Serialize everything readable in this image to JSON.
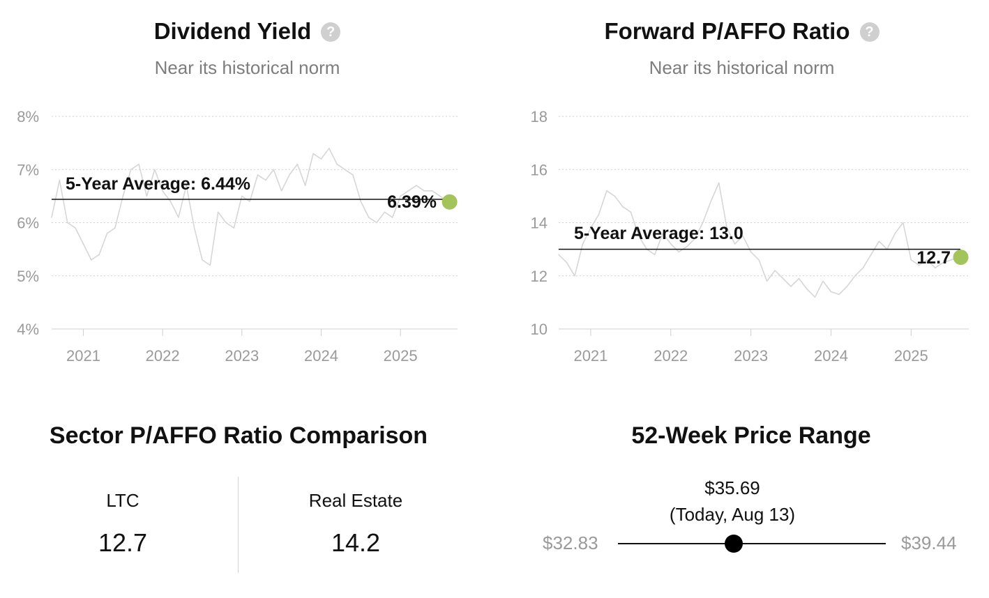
{
  "dividend": {
    "title": "Dividend Yield",
    "subtitle": "Near its historical norm",
    "help_icon": "question-circle-icon"
  },
  "pafo": {
    "title": "Forward P/AFFO Ratio",
    "subtitle": "Near its historical norm",
    "help_icon": "question-circle-icon"
  },
  "chart_data": [
    {
      "type": "line",
      "title": "Dividend Yield",
      "subtitle": "Near its historical norm",
      "y_tick_labels": [
        "4%",
        "5%",
        "6%",
        "7%",
        "8%"
      ],
      "y_ticks": [
        4,
        5,
        6,
        7,
        8
      ],
      "ylim": [
        4,
        8
      ],
      "x_tick_labels": [
        "2021",
        "2022",
        "2023",
        "2024",
        "2025"
      ],
      "x_ticks": [
        2021,
        2022,
        2023,
        2024,
        2025
      ],
      "xlim": [
        2020.6,
        2025.72
      ],
      "grid": true,
      "series_color": "#d6d6d6",
      "marker_color": "#a3c45a",
      "average": {
        "label": "5-Year Average: 6.44%",
        "value": 6.44
      },
      "current": {
        "label": "6.39%",
        "value": 6.39,
        "x": 2025.62
      },
      "series": [
        {
          "x": [
            2020.6,
            2020.7,
            2020.8,
            2020.9,
            2021.0,
            2021.1,
            2021.2,
            2021.3,
            2021.4,
            2021.5,
            2021.6,
            2021.7,
            2021.8,
            2021.9,
            2022.0,
            2022.1,
            2022.2,
            2022.3,
            2022.4,
            2022.5,
            2022.6,
            2022.7,
            2022.8,
            2022.9,
            2023.0,
            2023.1,
            2023.2,
            2023.3,
            2023.4,
            2023.5,
            2023.6,
            2023.7,
            2023.8,
            2023.9,
            2024.0,
            2024.1,
            2024.2,
            2024.3,
            2024.4,
            2024.5,
            2024.6,
            2024.7,
            2024.8,
            2024.9,
            2025.0,
            2025.1,
            2025.2,
            2025.3,
            2025.4,
            2025.5,
            2025.6
          ],
          "values": [
            6.1,
            6.8,
            6.0,
            5.9,
            5.6,
            5.3,
            5.4,
            5.8,
            5.9,
            6.5,
            7.0,
            7.1,
            6.5,
            7.0,
            6.6,
            6.4,
            6.1,
            6.7,
            5.9,
            5.3,
            5.2,
            6.2,
            6.0,
            5.9,
            6.5,
            6.4,
            6.9,
            6.8,
            7.0,
            6.6,
            6.9,
            7.1,
            6.7,
            7.3,
            7.2,
            7.4,
            7.1,
            7.0,
            6.9,
            6.4,
            6.1,
            6.0,
            6.2,
            6.1,
            6.5,
            6.6,
            6.7,
            6.6,
            6.6,
            6.5,
            6.4
          ]
        }
      ]
    },
    {
      "type": "line",
      "title": "Forward P/AFFO Ratio",
      "subtitle": "Near its historical norm",
      "y_tick_labels": [
        "10",
        "12",
        "14",
        "16",
        "18"
      ],
      "y_ticks": [
        10,
        12,
        14,
        16,
        18
      ],
      "ylim": [
        10,
        18
      ],
      "x_tick_labels": [
        "2021",
        "2022",
        "2023",
        "2024",
        "2025"
      ],
      "x_ticks": [
        2021,
        2022,
        2023,
        2024,
        2025
      ],
      "xlim": [
        2020.6,
        2025.72
      ],
      "grid": true,
      "series_color": "#d6d6d6",
      "marker_color": "#a3c45a",
      "average": {
        "label": "5-Year Average: 13.0",
        "value": 13.0
      },
      "current": {
        "label": "12.7",
        "value": 12.7,
        "x": 2025.62
      },
      "series": [
        {
          "x": [
            2020.6,
            2020.7,
            2020.8,
            2020.9,
            2021.0,
            2021.1,
            2021.2,
            2021.3,
            2021.4,
            2021.5,
            2021.6,
            2021.7,
            2021.8,
            2021.9,
            2022.0,
            2022.1,
            2022.2,
            2022.3,
            2022.4,
            2022.5,
            2022.6,
            2022.7,
            2022.8,
            2022.9,
            2023.0,
            2023.1,
            2023.2,
            2023.3,
            2023.4,
            2023.5,
            2023.6,
            2023.7,
            2023.8,
            2023.9,
            2024.0,
            2024.1,
            2024.2,
            2024.3,
            2024.4,
            2024.5,
            2024.6,
            2024.7,
            2024.8,
            2024.9,
            2025.0,
            2025.1,
            2025.2,
            2025.3,
            2025.4,
            2025.5,
            2025.6
          ],
          "values": [
            12.8,
            12.5,
            12.0,
            13.2,
            13.8,
            14.3,
            15.2,
            15.0,
            14.6,
            14.4,
            13.5,
            13.0,
            12.8,
            13.6,
            13.2,
            12.9,
            13.1,
            13.4,
            14.0,
            14.8,
            15.5,
            13.8,
            13.2,
            13.5,
            12.9,
            12.6,
            11.8,
            12.2,
            11.9,
            11.6,
            11.9,
            11.5,
            11.2,
            11.8,
            11.4,
            11.3,
            11.6,
            12.0,
            12.3,
            12.8,
            13.3,
            13.0,
            13.6,
            14.0,
            12.6,
            12.4,
            12.6,
            12.3,
            12.5,
            12.6,
            12.7
          ]
        }
      ]
    },
    {
      "type": "table",
      "title": "Sector P/AFFO Ratio Comparison",
      "categories": [
        "LTC",
        "Real Estate"
      ],
      "values": [
        12.7,
        14.2
      ]
    }
  ],
  "sector": {
    "title": "Sector P/AFFO Ratio Comparison",
    "items": [
      {
        "label": "LTC",
        "value": "12.7"
      },
      {
        "label": "Real Estate",
        "value": "14.2"
      }
    ]
  },
  "range52": {
    "title": "52-Week Price Range",
    "current_price": "$35.69",
    "current_date": "(Today, Aug 13)",
    "low": "$32.83",
    "high": "$39.44",
    "low_value": 32.83,
    "high_value": 39.44,
    "current_value": 35.69
  }
}
